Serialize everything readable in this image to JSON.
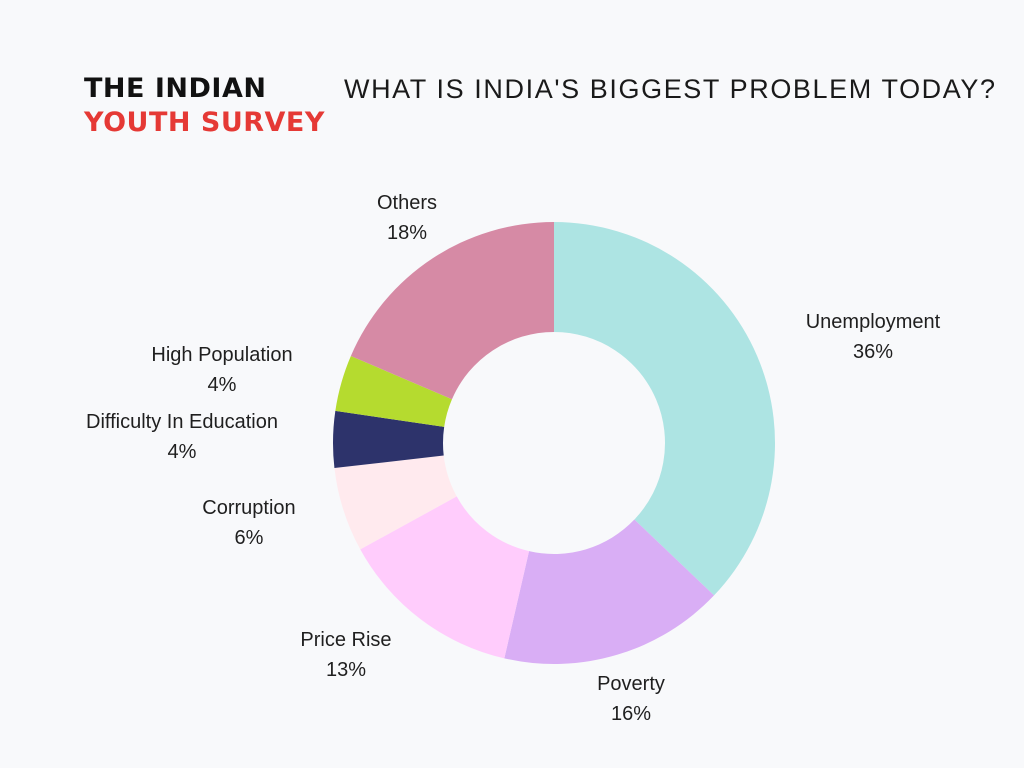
{
  "brand": {
    "line1": "THE INDIAN",
    "line2": "YOUTH SURVEY"
  },
  "colors": {
    "brand_line1": "#111111",
    "brand_line2": "#e53935",
    "background": "#f8f9fb"
  },
  "chart_data": {
    "type": "pie",
    "title": "WHAT IS INDIA'S BIGGEST PROBLEM TODAY?",
    "donut": true,
    "legend": "none",
    "slices": [
      {
        "label": "Unemployment",
        "value": 36,
        "value_label": "36%",
        "color": "#ade4e3"
      },
      {
        "label": "Poverty",
        "value": 16,
        "value_label": "16%",
        "color": "#d9aef5"
      },
      {
        "label": "Price Rise",
        "value": 13,
        "value_label": "13%",
        "color": "#ffccfc"
      },
      {
        "label": "Corruption",
        "value": 6,
        "value_label": "6%",
        "color": "#ffeaee"
      },
      {
        "label": "Difficulty In Education",
        "value": 4,
        "value_label": "4%",
        "color": "#2d336b"
      },
      {
        "label": "High Population",
        "value": 4,
        "value_label": "4%",
        "color": "#b5db2f"
      },
      {
        "label": "Others",
        "value": 18,
        "value_label": "18%",
        "color": "#d68aa5"
      }
    ]
  }
}
